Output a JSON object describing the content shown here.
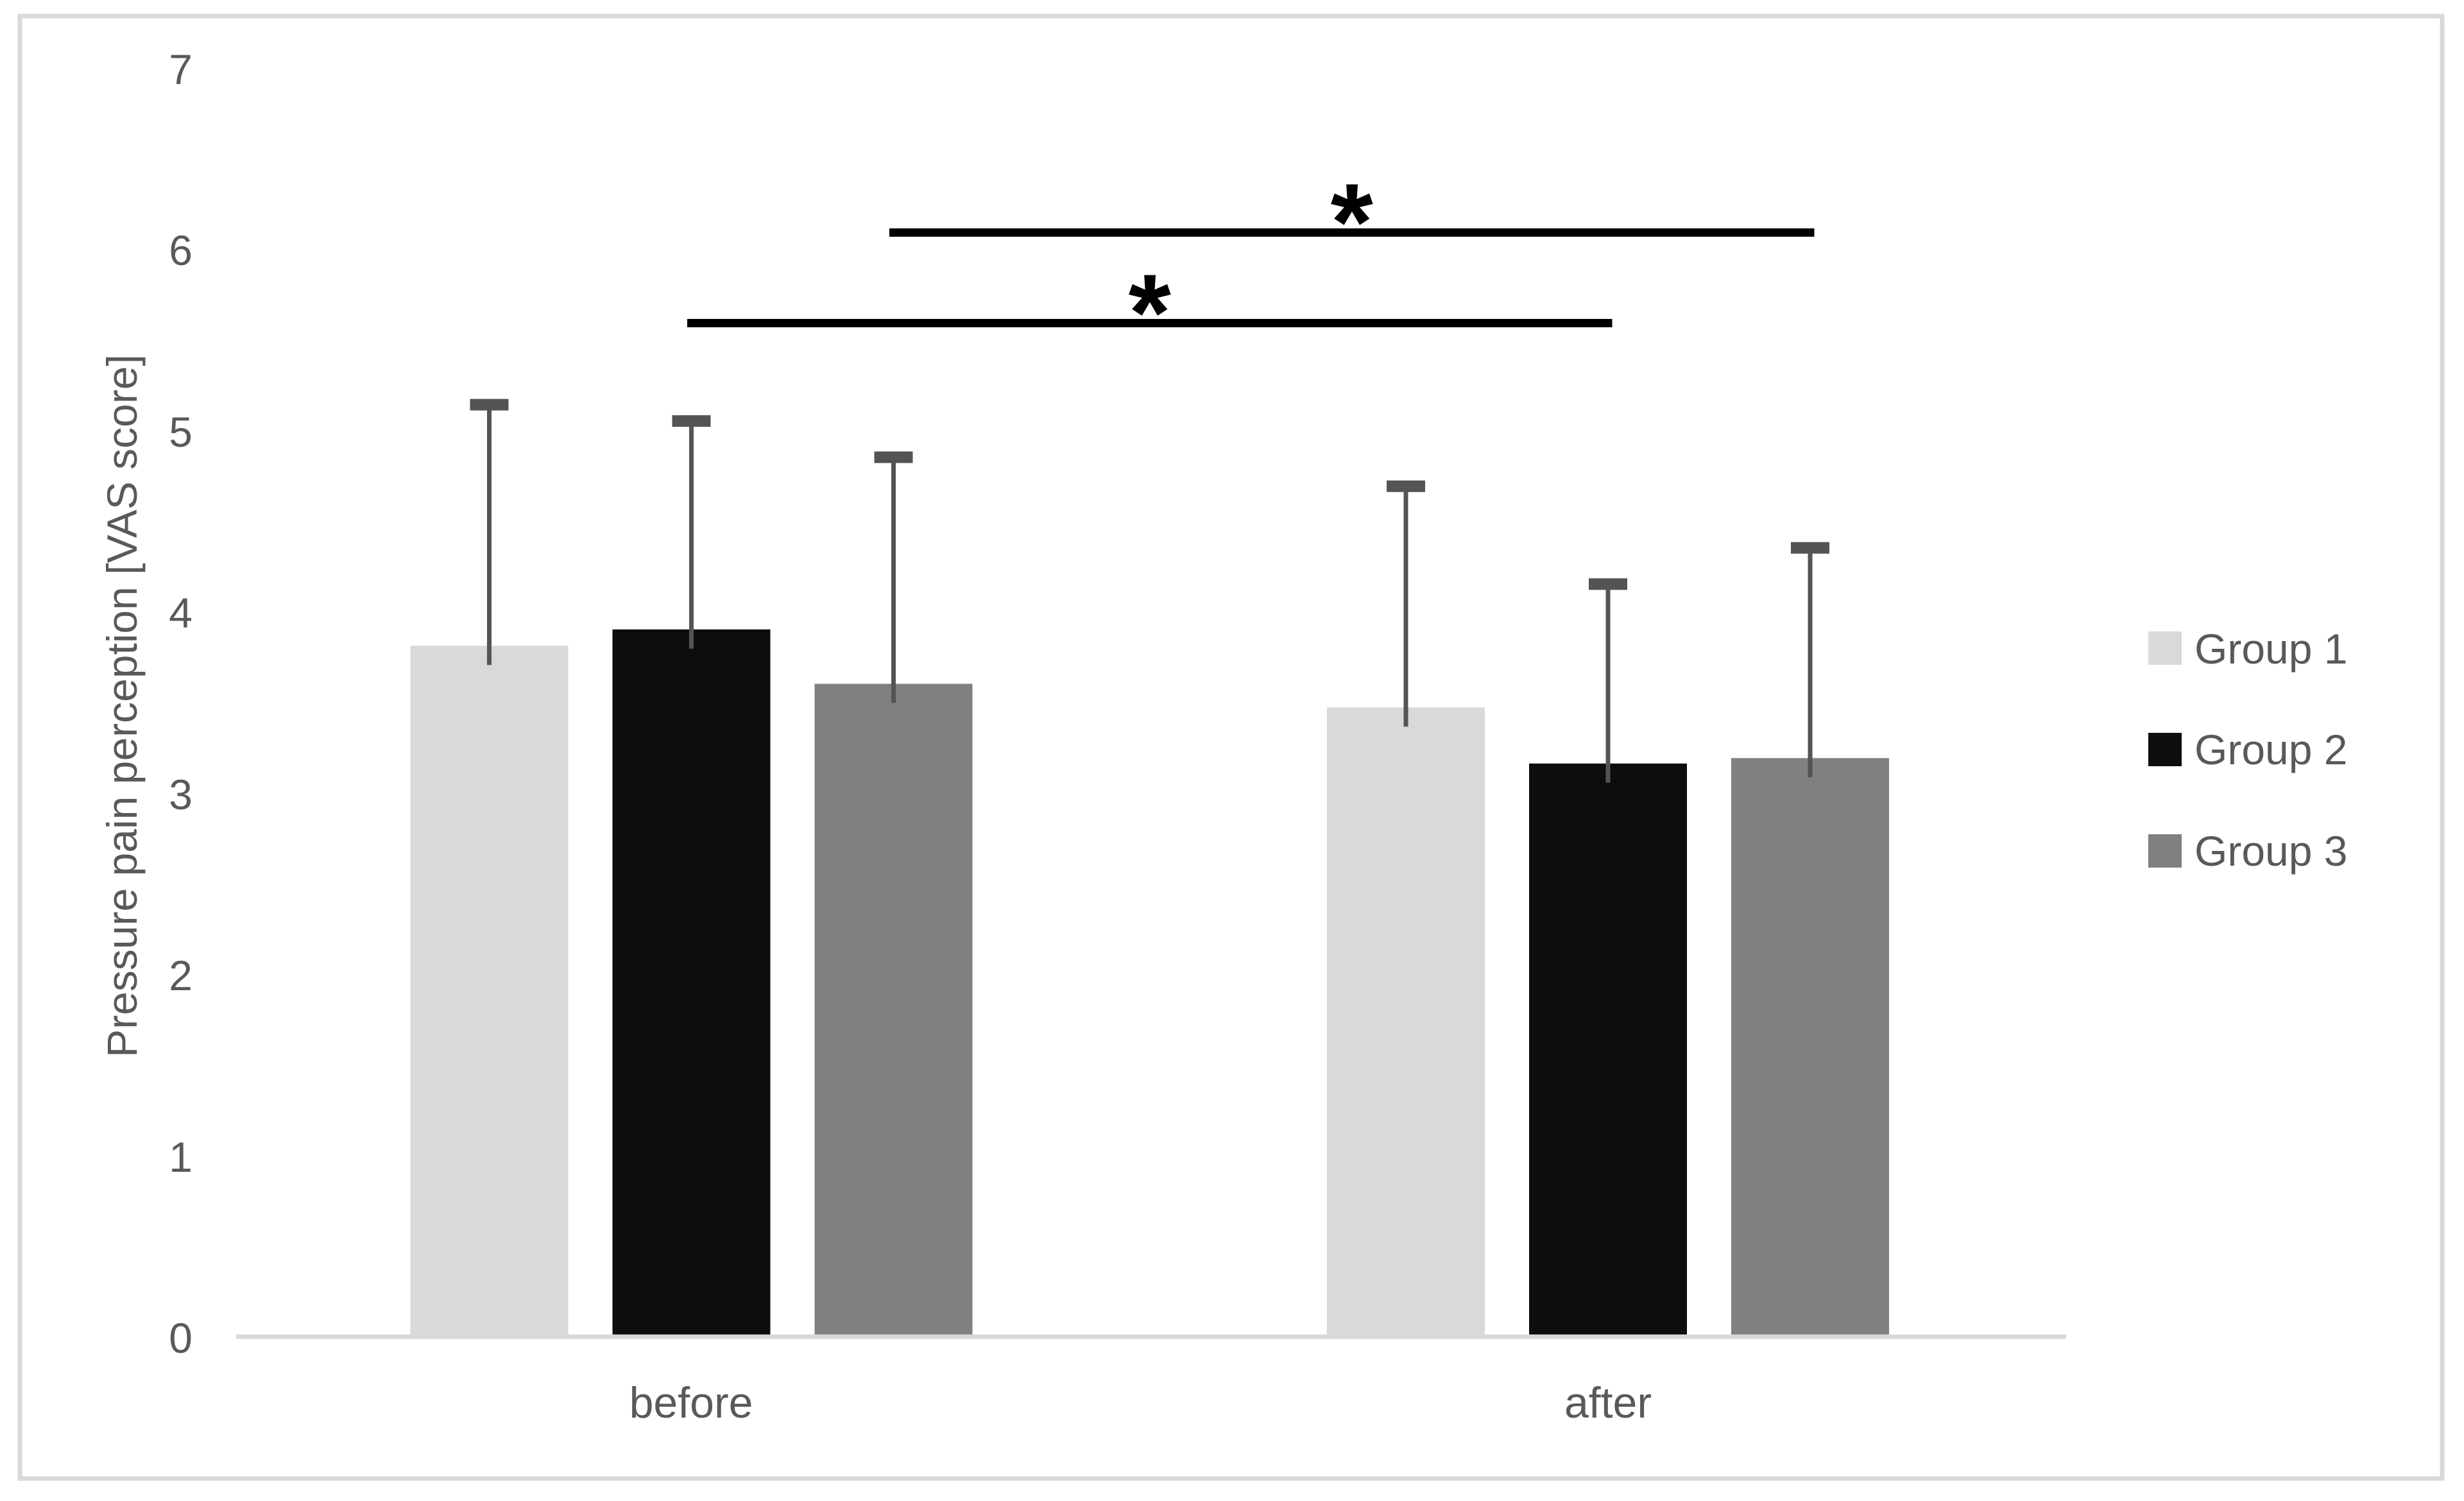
{
  "figure": {
    "frame_color": "#d9d9d9",
    "background_color": "#ffffff"
  },
  "chart_data": {
    "type": "bar",
    "title": "",
    "xlabel": "",
    "ylabel": "Pressure pain perception [VAS score]",
    "categories": [
      "before",
      "after"
    ],
    "yticks": [
      0,
      1,
      2,
      3,
      4,
      5,
      6,
      7
    ],
    "ylim": [
      0,
      7
    ],
    "grid": false,
    "legend_position": "right",
    "text_color": "#595959",
    "axis_line_color": "#d9d9d9",
    "error_bar_color": "#545454",
    "significance_color": "#000000",
    "series": [
      {
        "name": "Group 1",
        "color": "#d9d9d9",
        "values": [
          3.82,
          3.48
        ],
        "error_bar_tops": [
          5.15,
          4.7
        ]
      },
      {
        "name": "Group 2",
        "color": "#0d0d0d",
        "values": [
          3.91,
          3.17
        ],
        "error_bar_tops": [
          5.06,
          4.16
        ]
      },
      {
        "name": "Group 3",
        "color": "#808080",
        "values": [
          3.61,
          3.2
        ],
        "error_bar_tops": [
          4.86,
          4.36
        ]
      }
    ],
    "significance_markers": [
      {
        "symbol": "*",
        "series": "Group 2",
        "between": [
          "before",
          "after"
        ],
        "y_value": 5.6
      },
      {
        "symbol": "*",
        "series": "Group 3",
        "between": [
          "before",
          "after"
        ],
        "y_value": 6.1
      }
    ]
  }
}
